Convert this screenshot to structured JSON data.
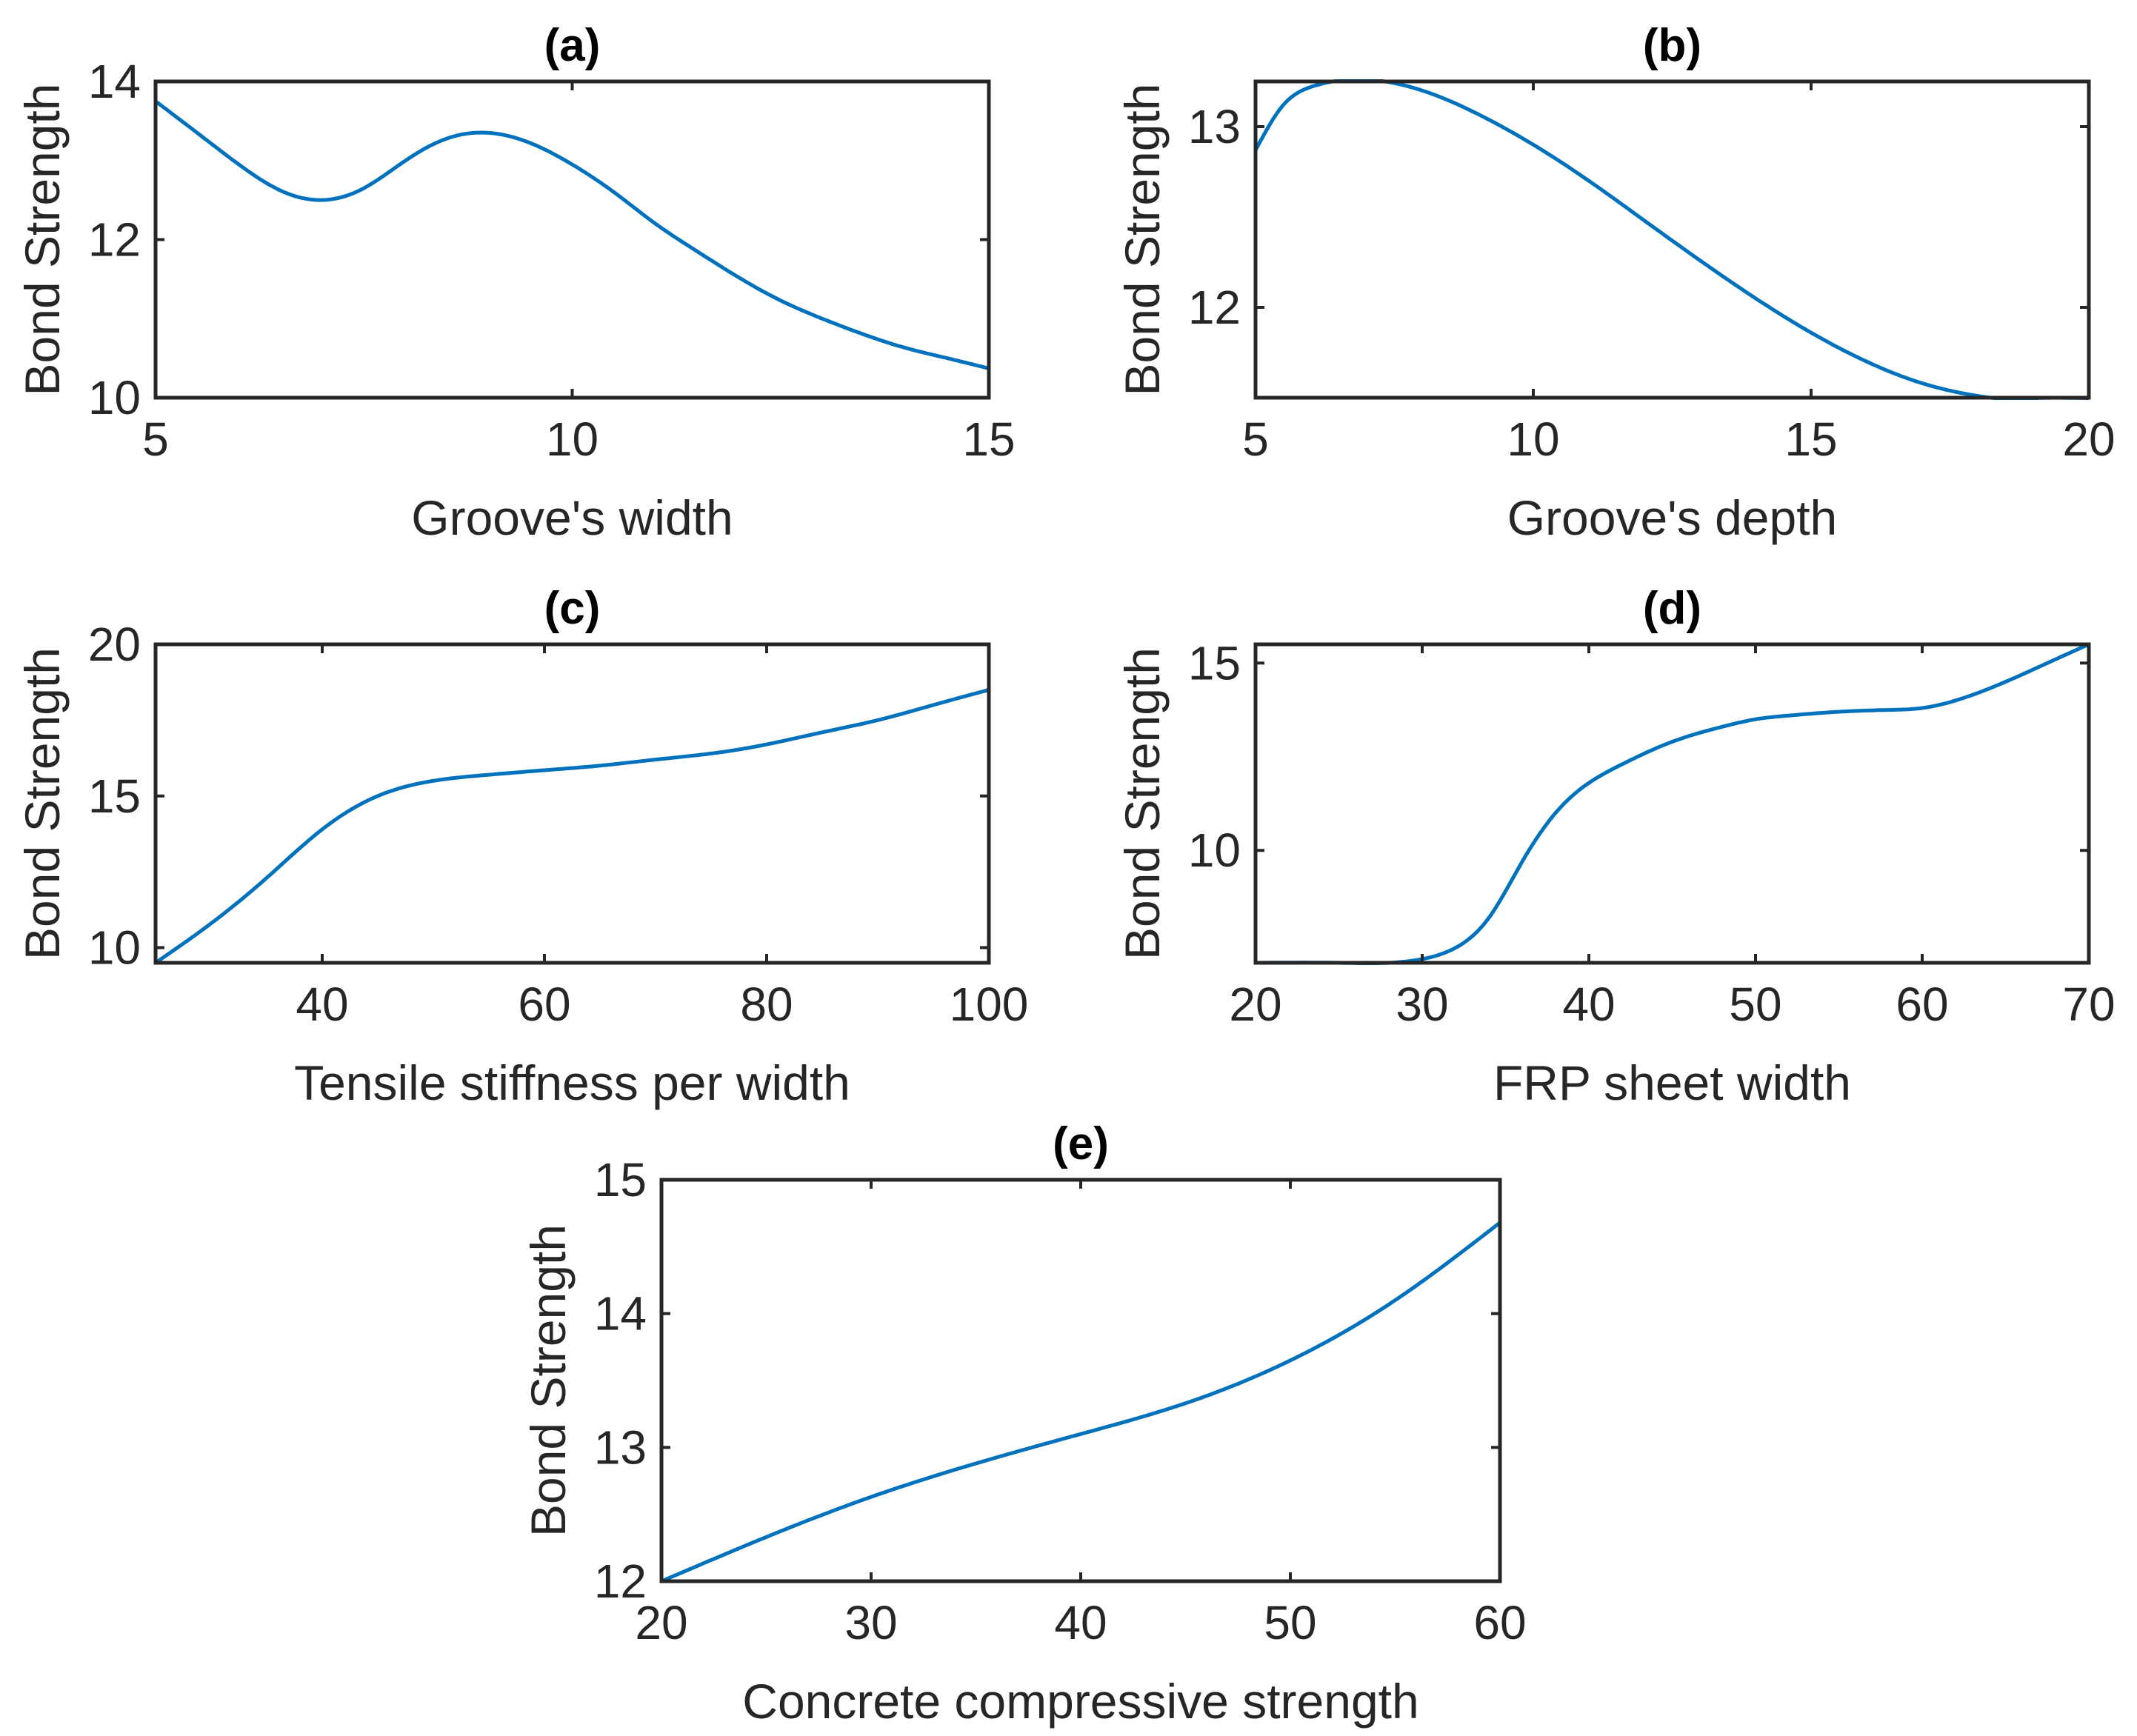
{
  "chart_data": [
    {
      "type": "line",
      "title": "(a)",
      "xlabel": "Groove's width",
      "ylabel": "Bond Strength",
      "xlim": [
        5,
        15
      ],
      "ylim": [
        10,
        14
      ],
      "xticks": [
        5,
        10,
        15
      ],
      "yticks": [
        10,
        12,
        14
      ],
      "series": [
        {
          "name": "Bond Strength",
          "color": "#0072BD",
          "x": [
            5,
            5.5,
            6,
            6.5,
            7,
            7.5,
            8,
            8.5,
            9,
            9.5,
            10,
            10.5,
            11,
            11.5,
            12,
            12.5,
            13,
            13.5,
            14,
            14.5,
            15
          ],
          "y": [
            13.75,
            13.35,
            12.95,
            12.62,
            12.5,
            12.65,
            13.0,
            13.28,
            13.35,
            13.22,
            12.95,
            12.6,
            12.2,
            11.85,
            11.52,
            11.23,
            11.0,
            10.8,
            10.63,
            10.5,
            10.37
          ]
        }
      ]
    },
    {
      "type": "line",
      "title": "(b)",
      "xlabel": "Groove's depth",
      "ylabel": "Bond Strength",
      "xlim": [
        5,
        20
      ],
      "ylim": [
        11.5,
        13.25
      ],
      "xticks": [
        5,
        10,
        15,
        20
      ],
      "yticks": [
        12,
        13
      ],
      "series": [
        {
          "name": "Bond Strength",
          "color": "#0072BD",
          "x": [
            5,
            5.5,
            6,
            7,
            8,
            9,
            10,
            11,
            12,
            13,
            14,
            15,
            16,
            17,
            18,
            19,
            20
          ],
          "y": [
            12.87,
            13.12,
            13.22,
            13.26,
            13.2,
            13.07,
            12.9,
            12.7,
            12.48,
            12.26,
            12.05,
            11.86,
            11.7,
            11.58,
            11.51,
            11.48,
            11.48
          ]
        }
      ]
    },
    {
      "type": "line",
      "title": "(c)",
      "xlabel": "Tensile stiffness per width",
      "ylabel": "Bond Strength",
      "xlim": [
        25,
        100
      ],
      "ylim": [
        9.5,
        20
      ],
      "xticks": [
        40,
        60,
        80,
        100
      ],
      "yticks": [
        10,
        15,
        20
      ],
      "series": [
        {
          "name": "Bond Strength",
          "color": "#0072BD",
          "x": [
            25,
            30,
            35,
            40,
            45,
            50,
            55,
            60,
            65,
            70,
            75,
            80,
            85,
            90,
            95,
            100
          ],
          "y": [
            9.5,
            10.8,
            12.3,
            13.9,
            15.0,
            15.5,
            15.7,
            15.85,
            16.0,
            16.2,
            16.4,
            16.7,
            17.1,
            17.5,
            18.0,
            18.5
          ]
        }
      ]
    },
    {
      "type": "line",
      "title": "(d)",
      "xlabel": "FRP sheet width",
      "ylabel": "Bond Strength",
      "xlim": [
        20,
        70
      ],
      "ylim": [
        7,
        15.5
      ],
      "xticks": [
        20,
        30,
        40,
        50,
        60,
        70
      ],
      "yticks": [
        10,
        15
      ],
      "series": [
        {
          "name": "Bond Strength",
          "color": "#0072BD",
          "x": [
            20,
            25,
            28,
            30,
            32,
            34,
            36,
            38,
            40,
            42,
            45,
            48,
            50,
            52,
            55,
            58,
            60,
            62,
            65,
            68,
            70
          ],
          "y": [
            7.0,
            7.0,
            7.0,
            7.1,
            7.4,
            8.2,
            9.7,
            11.0,
            11.8,
            12.3,
            12.9,
            13.3,
            13.5,
            13.6,
            13.7,
            13.75,
            13.8,
            14.0,
            14.5,
            15.1,
            15.5
          ]
        }
      ]
    },
    {
      "type": "line",
      "title": "(e)",
      "xlabel": "Concrete compressive strength",
      "ylabel": "Bond Strength",
      "xlim": [
        20,
        60
      ],
      "ylim": [
        12,
        15
      ],
      "xticks": [
        20,
        30,
        40,
        50,
        60
      ],
      "yticks": [
        12,
        13,
        14,
        15
      ],
      "series": [
        {
          "name": "Bond Strength",
          "color": "#0072BD",
          "x": [
            20,
            25,
            30,
            35,
            40,
            45,
            50,
            55,
            60
          ],
          "y": [
            12.0,
            12.33,
            12.63,
            12.88,
            13.1,
            13.33,
            13.65,
            14.1,
            14.68
          ]
        }
      ]
    }
  ]
}
